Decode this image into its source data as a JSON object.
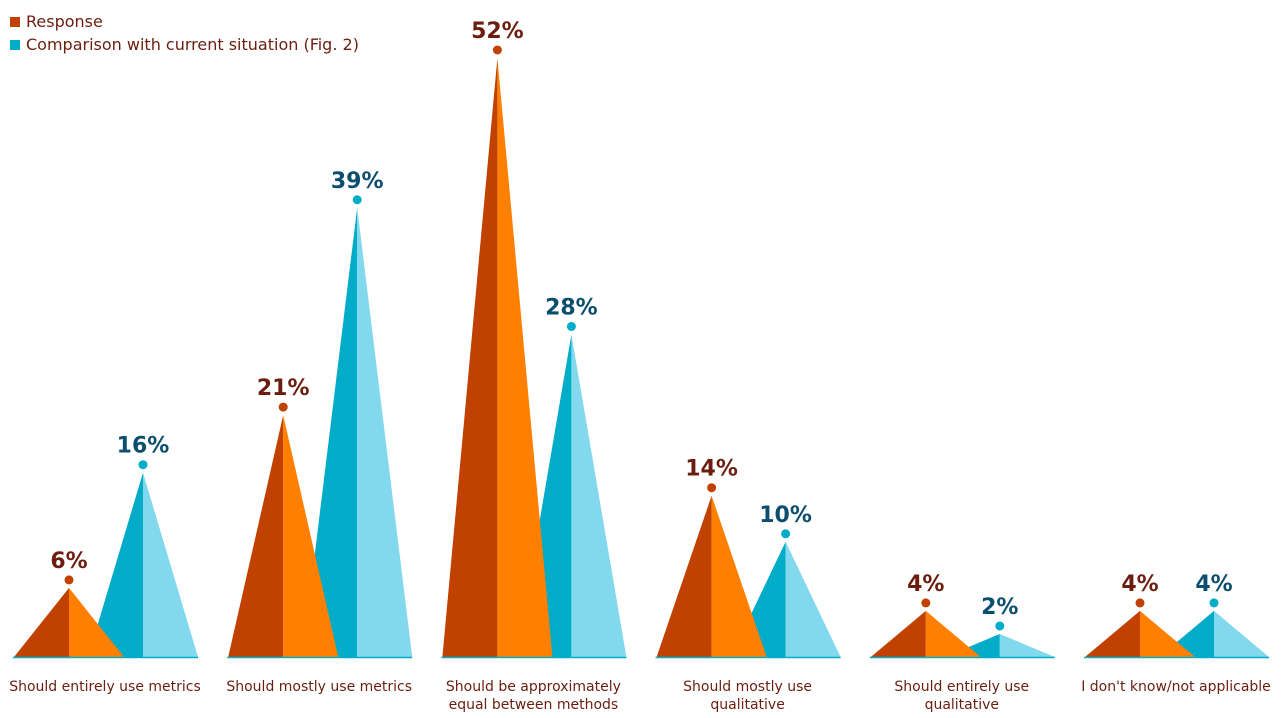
{
  "legend": [
    {
      "label": "Response",
      "color": "#c14100"
    },
    {
      "label": "Comparison with current situation (Fig. 2)",
      "color": "#00acc8"
    }
  ],
  "chart_data": {
    "type": "bar",
    "title": "",
    "xlabel": "",
    "ylabel": "",
    "ylim": [
      0,
      52
    ],
    "categories": [
      "Should entirely use metrics",
      "Should mostly use metrics",
      "Should be approximately equal between methods",
      "Should mostly use qualitative",
      "Should entirely use qualitative",
      "I don't know/not applicable"
    ],
    "category_lines": [
      [
        "Should entirely use metrics"
      ],
      [
        "Should mostly use metrics"
      ],
      [
        "Should be approximately",
        "equal between methods"
      ],
      [
        "Should mostly use",
        "qualitative"
      ],
      [
        "Should entirely use",
        "qualitative"
      ],
      [
        "I don't know/not applicable"
      ]
    ],
    "series": [
      {
        "name": "Response",
        "values": [
          6,
          21,
          52,
          14,
          4,
          4
        ],
        "labels": [
          "6%",
          "21%",
          "52%",
          "14%",
          "4%",
          "4%"
        ]
      },
      {
        "name": "Comparison with current situation (Fig. 2)",
        "values": [
          16,
          39,
          28,
          10,
          2,
          4
        ],
        "labels": [
          "16%",
          "39%",
          "28%",
          "10%",
          "2%",
          "4%"
        ]
      }
    ],
    "colors": {
      "response_dark": "#c14100",
      "response_light": "#ff8000",
      "response_text": "#6b1e0f",
      "comparison_dark": "#00acc8",
      "comparison_light": "#82d8ed",
      "comparison_text": "#0c4e6e",
      "baseline": "#00acc8"
    }
  }
}
